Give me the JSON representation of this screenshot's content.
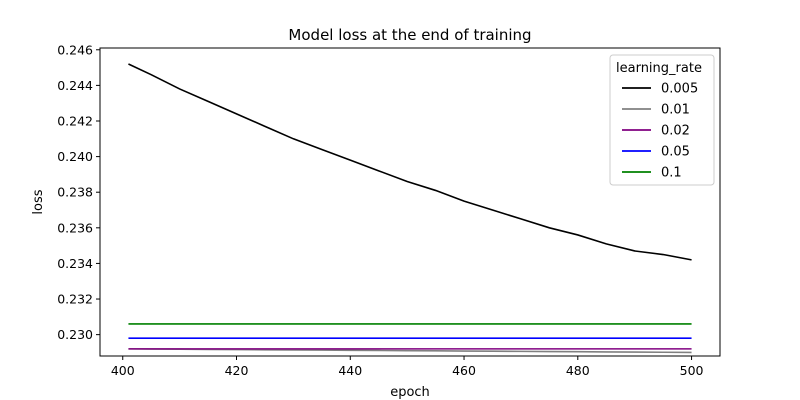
{
  "chart_data": {
    "type": "line",
    "title": "Model loss at the end of training",
    "xlabel": "epoch",
    "ylabel": "loss",
    "xlim": [
      396,
      505
    ],
    "ylim": [
      0.2288,
      0.2461
    ],
    "xticks": [
      400,
      420,
      440,
      460,
      480,
      500
    ],
    "yticks": [
      0.23,
      0.232,
      0.234,
      0.236,
      0.238,
      0.24,
      0.242,
      0.244,
      0.246
    ],
    "ytick_decimals": 3,
    "grid": false,
    "legend": {
      "title": "learning_rate",
      "placement": "top-right"
    },
    "x": [
      401,
      405,
      410,
      415,
      420,
      425,
      430,
      435,
      440,
      445,
      450,
      455,
      460,
      465,
      470,
      475,
      480,
      485,
      490,
      495,
      500
    ],
    "series": [
      {
        "name": "0.005",
        "color": "#000000",
        "values": [
          0.2452,
          0.2446,
          0.2438,
          0.2431,
          0.2424,
          0.2417,
          0.241,
          0.2404,
          0.2398,
          0.2392,
          0.2386,
          0.2381,
          0.2375,
          0.237,
          0.2365,
          0.236,
          0.2356,
          0.2351,
          0.2347,
          0.2345,
          0.2342
        ]
      },
      {
        "name": "0.01",
        "color": "#808080",
        "values": [
          0.2292,
          0.22919,
          0.22918,
          0.22917,
          0.22916,
          0.22915,
          0.22914,
          0.22913,
          0.22912,
          0.22911,
          0.2291,
          0.22909,
          0.22908,
          0.22907,
          0.22906,
          0.22905,
          0.22904,
          0.22903,
          0.22902,
          0.22901,
          0.229
        ]
      },
      {
        "name": "0.02",
        "color": "#800080",
        "values": [
          0.2292,
          0.2292,
          0.2292,
          0.2292,
          0.2292,
          0.2292,
          0.2292,
          0.2292,
          0.2292,
          0.2292,
          0.2292,
          0.2292,
          0.2292,
          0.2292,
          0.2292,
          0.2292,
          0.2292,
          0.2292,
          0.2292,
          0.2292,
          0.2292
        ]
      },
      {
        "name": "0.05",
        "color": "#0000ff",
        "values": [
          0.2298,
          0.2298,
          0.2298,
          0.2298,
          0.2298,
          0.2298,
          0.2298,
          0.2298,
          0.2298,
          0.2298,
          0.2298,
          0.2298,
          0.2298,
          0.2298,
          0.2298,
          0.2298,
          0.2298,
          0.2298,
          0.2298,
          0.2298,
          0.2298
        ]
      },
      {
        "name": "0.1",
        "color": "#008000",
        "values": [
          0.2306,
          0.2306,
          0.2306,
          0.2306,
          0.2306,
          0.2306,
          0.2306,
          0.2306,
          0.2306,
          0.2306,
          0.2306,
          0.2306,
          0.2306,
          0.2306,
          0.2306,
          0.2306,
          0.2306,
          0.2306,
          0.2306,
          0.2306,
          0.2306
        ]
      }
    ]
  }
}
